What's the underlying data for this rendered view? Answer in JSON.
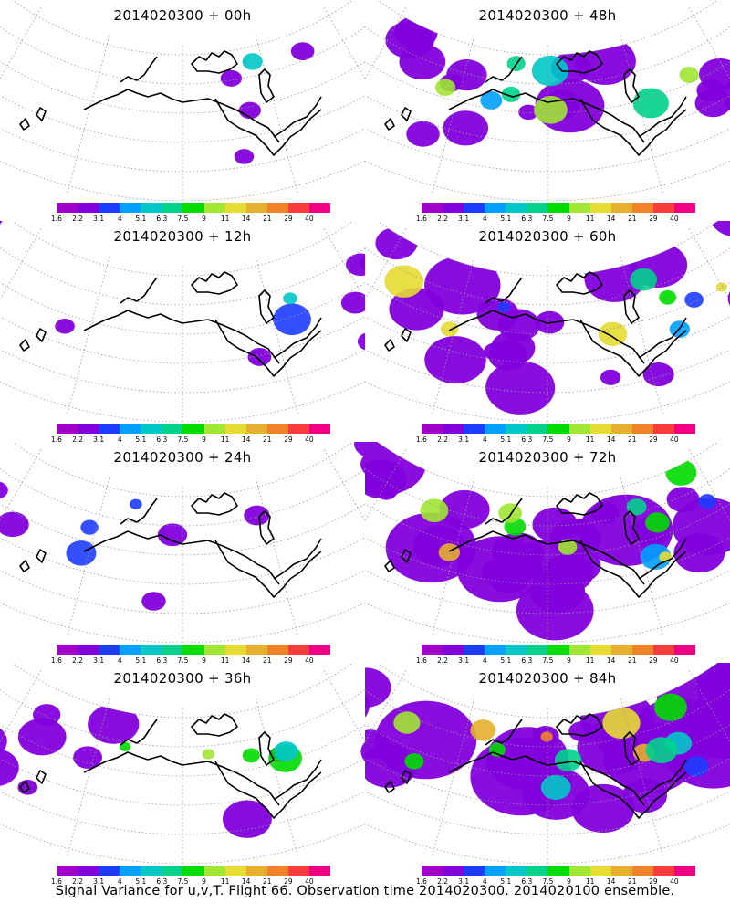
{
  "caption": "Signal Variance for u,v,T. Flight 66. Observation time 2014020300. 2014020100 ensemble.",
  "colorbar": {
    "colors": [
      "#a000c8",
      "#8200dc",
      "#1e3cff",
      "#00a0ff",
      "#00c8c8",
      "#00d28c",
      "#00dc00",
      "#a0e632",
      "#e6dc32",
      "#e6af2d",
      "#f08228",
      "#fa3c3c",
      "#f00082"
    ],
    "labels": [
      "1.6",
      "2.2",
      "3.1",
      "4",
      "5.1",
      "6.3",
      "7.5",
      "9",
      "11",
      "14",
      "21",
      "29",
      "40"
    ]
  },
  "panels": [
    {
      "id": "p00",
      "title": "2014020300 + 00h",
      "intensity": 0.05
    },
    {
      "id": "p48",
      "title": "2014020300 + 48h",
      "intensity": 0.55
    },
    {
      "id": "p12",
      "title": "2014020300 + 12h",
      "intensity": 0.12
    },
    {
      "id": "p60",
      "title": "2014020300 + 60h",
      "intensity": 0.65
    },
    {
      "id": "p24",
      "title": "2014020300 + 24h",
      "intensity": 0.2
    },
    {
      "id": "p72",
      "title": "2014020300 + 72h",
      "intensity": 0.8
    },
    {
      "id": "p36",
      "title": "2014020300 + 36h",
      "intensity": 0.35
    },
    {
      "id": "p84",
      "title": "2014020300 + 84h",
      "intensity": 0.95
    }
  ]
}
